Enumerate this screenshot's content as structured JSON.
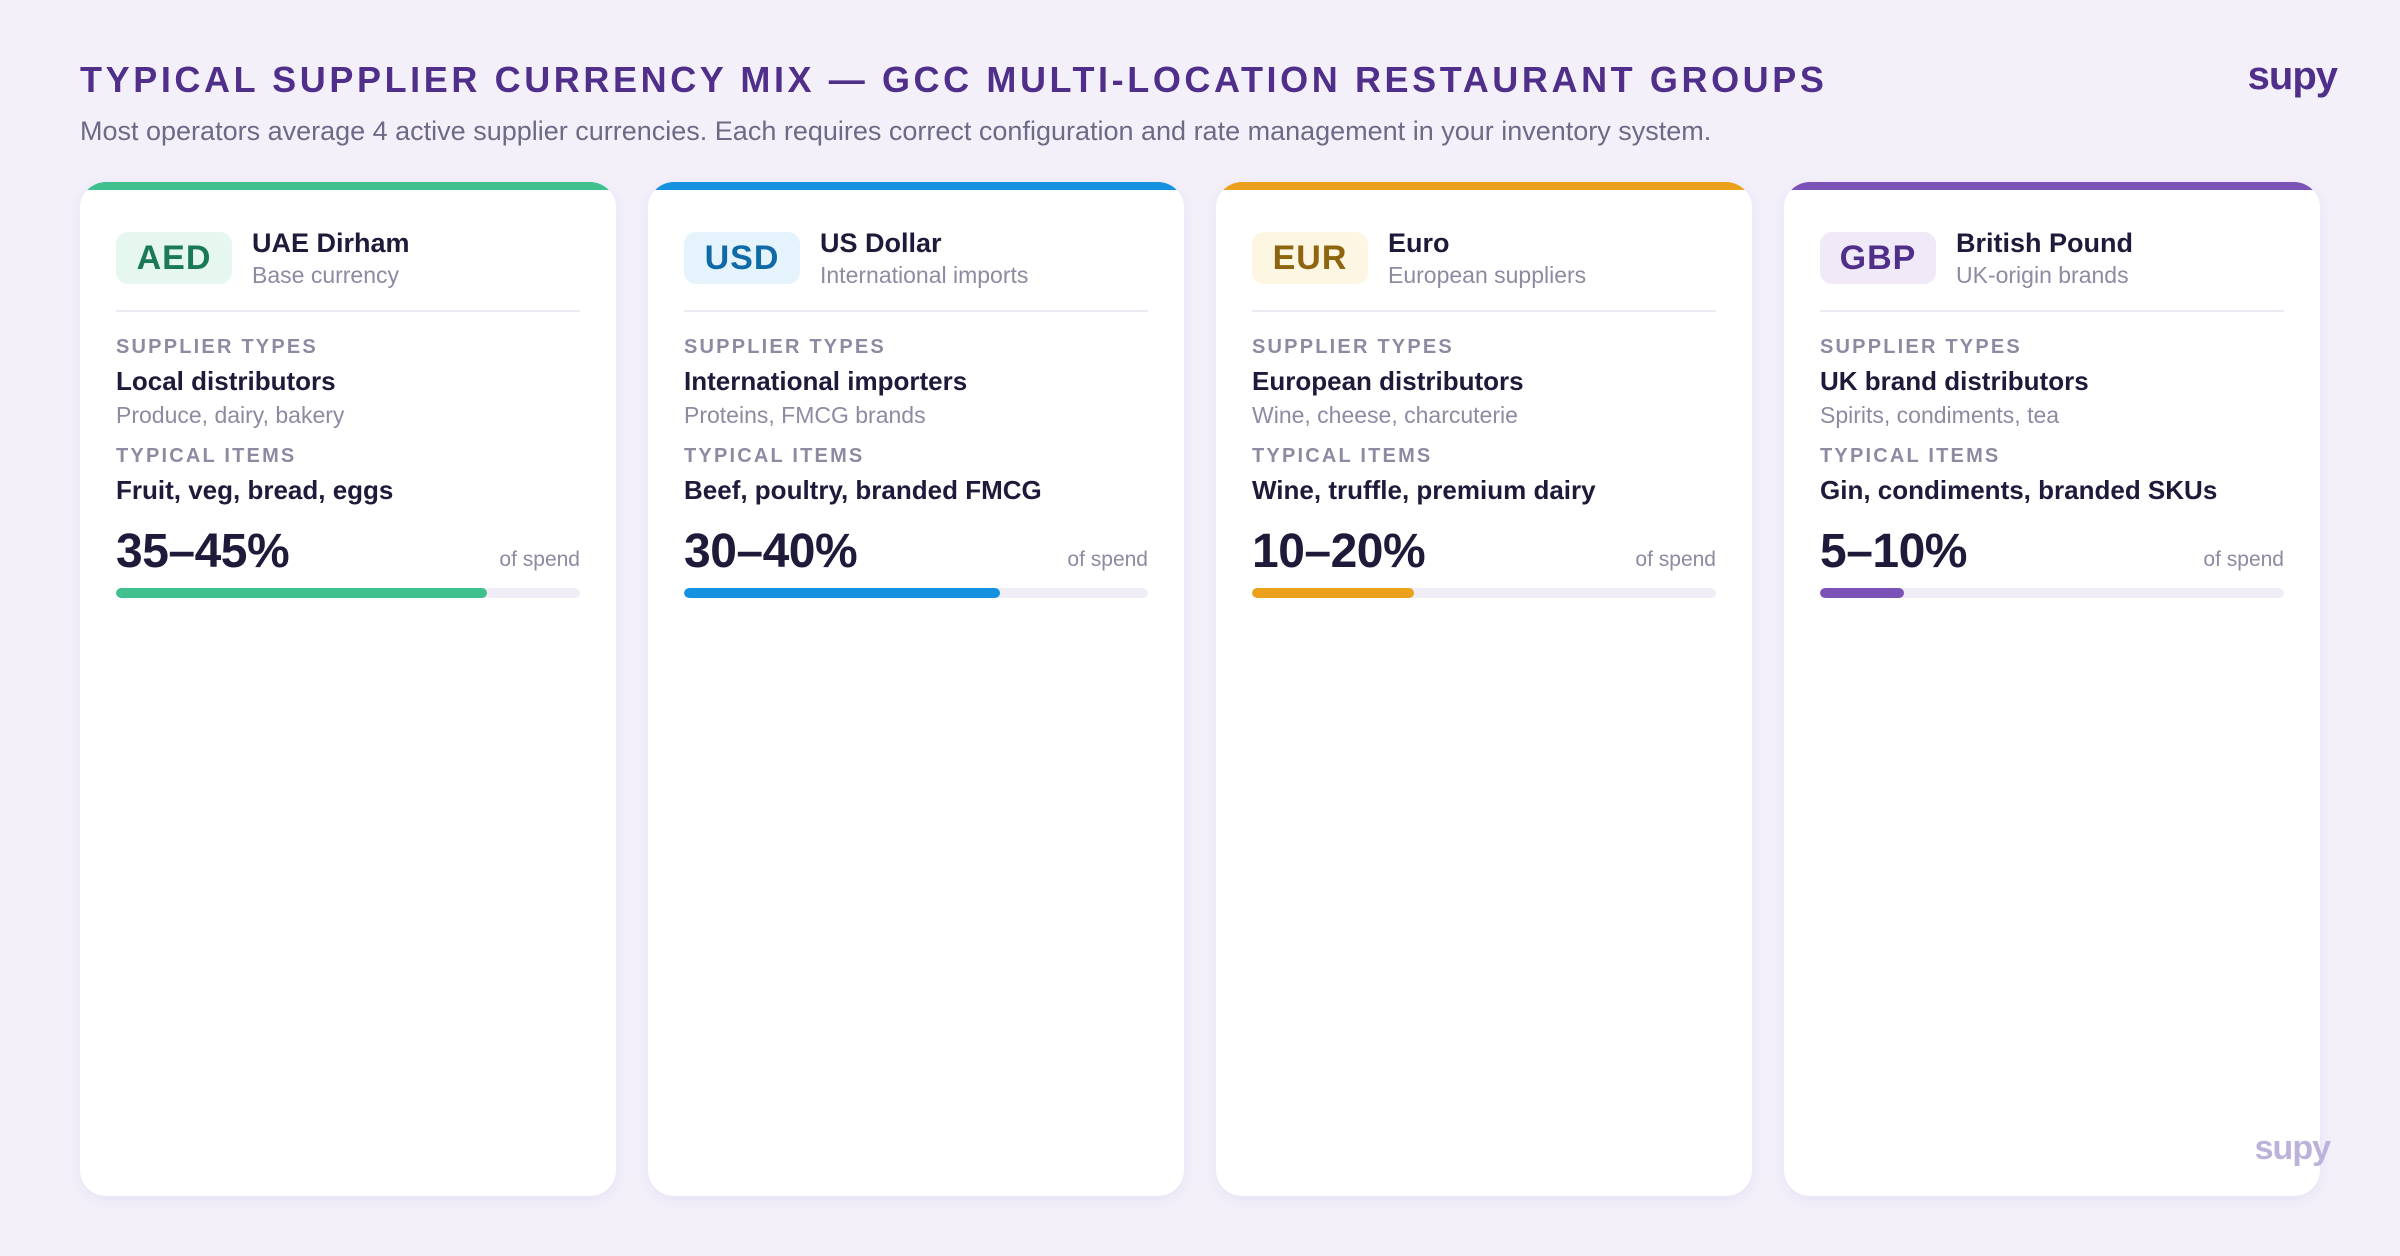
{
  "header": {
    "title": "TYPICAL SUPPLIER CURRENCY MIX — GCC MULTI-LOCATION RESTAURANT GROUPS",
    "subtitle": "Most operators average 4 active supplier currencies. Each requires correct configuration and rate management in your inventory system.",
    "logo": "supy"
  },
  "labels": {
    "supplier_types": "SUPPLIER TYPES",
    "typical_items": "TYPICAL ITEMS",
    "of_spend": "of spend"
  },
  "cards": [
    {
      "code": "AED",
      "name": "UAE Dirham",
      "description": "Base currency",
      "supplier_type": "Local distributors",
      "supplier_examples": "Produce, dairy, bakery",
      "typical_items": "Fruit, veg, bread, eggs",
      "spend": "35–45%",
      "bar_fraction": 0.8,
      "accent": "#40c08f",
      "badge_bg": "#e6f7f0",
      "badge_fg": "#1a7a55"
    },
    {
      "code": "USD",
      "name": "US Dollar",
      "description": "International imports",
      "supplier_type": "International importers",
      "supplier_examples": "Proteins, FMCG brands",
      "typical_items": "Beef, poultry, branded FMCG",
      "spend": "30–40%",
      "bar_fraction": 0.68,
      "accent": "#1592df",
      "badge_bg": "#e5f3fc",
      "badge_fg": "#0f6aa7"
    },
    {
      "code": "EUR",
      "name": "Euro",
      "description": "European suppliers",
      "supplier_type": "European distributors",
      "supplier_examples": "Wine, cheese, charcuterie",
      "typical_items": "Wine, truffle, premium dairy",
      "spend": "10–20%",
      "bar_fraction": 0.35,
      "accent": "#eba11c",
      "badge_bg": "#fdf6e2",
      "badge_fg": "#8d6410"
    },
    {
      "code": "GBP",
      "name": "British Pound",
      "description": "UK-origin brands",
      "supplier_type": "UK brand distributors",
      "supplier_examples": "Spirits, condiments, tea",
      "typical_items": "Gin, condiments, branded SKUs",
      "spend": "5–10%",
      "bar_fraction": 0.18,
      "accent": "#7a52b8",
      "badge_bg": "#efe9f8",
      "badge_fg": "#4f2f8a"
    }
  ],
  "watermark": "supy"
}
